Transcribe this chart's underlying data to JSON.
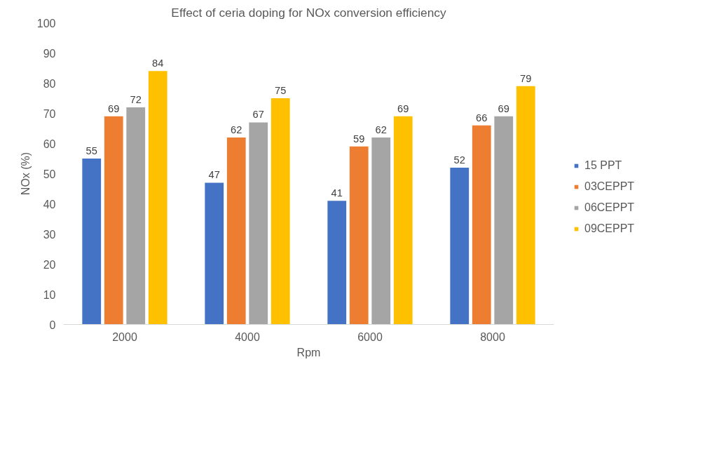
{
  "chart_data": {
    "type": "bar",
    "title": "Effect of ceria doping for NOx conversion efficiency",
    "xlabel": "Rpm",
    "ylabel": "NOx (%)",
    "categories": [
      "2000",
      "4000",
      "6000",
      "8000"
    ],
    "series": [
      {
        "name": "15 PPT",
        "color": "#4472c4",
        "values": [
          55,
          47,
          41,
          52
        ]
      },
      {
        "name": "03CEPPT",
        "color": "#ed7d31",
        "values": [
          69,
          62,
          59,
          66
        ]
      },
      {
        "name": "06CEPPT",
        "color": "#a5a5a5",
        "values": [
          72,
          67,
          62,
          69
        ]
      },
      {
        "name": "09CEPPT",
        "color": "#ffc000",
        "values": [
          84,
          75,
          69,
          79
        ]
      }
    ],
    "ylim": [
      0,
      100
    ],
    "yticks": [
      0,
      10,
      20,
      30,
      40,
      50,
      60,
      70,
      80,
      90,
      100
    ],
    "grid": false,
    "legend": "right",
    "data_labels": true
  }
}
